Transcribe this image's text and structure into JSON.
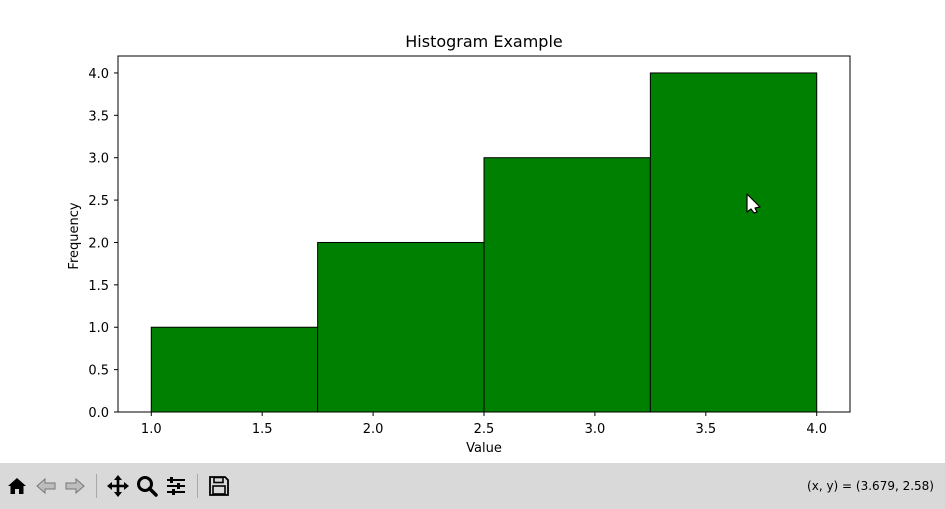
{
  "window": {
    "coord_readout": "(x, y) = (3.679, 2.58)"
  },
  "toolbar": {
    "buttons": [
      {
        "name": "home-button",
        "icon": "home-icon"
      },
      {
        "name": "back-button",
        "icon": "arrow-left-icon"
      },
      {
        "name": "forward-button",
        "icon": "arrow-right-icon"
      },
      {
        "name": "pan-button",
        "icon": "move-icon"
      },
      {
        "name": "zoom-button",
        "icon": "magnifier-icon"
      },
      {
        "name": "configure-subplots-button",
        "icon": "sliders-icon"
      },
      {
        "name": "save-button",
        "icon": "floppy-disk-icon"
      }
    ]
  },
  "chart_data": {
    "type": "bar",
    "title": "Histogram Example",
    "xlabel": "Value",
    "ylabel": "Frequency",
    "bins": [
      {
        "start": 1.0,
        "end": 1.75,
        "value": 1
      },
      {
        "start": 1.75,
        "end": 2.5,
        "value": 2
      },
      {
        "start": 2.5,
        "end": 3.25,
        "value": 3
      },
      {
        "start": 3.25,
        "end": 4.0,
        "value": 4
      }
    ],
    "xlim": [
      0.85,
      4.15
    ],
    "ylim": [
      0,
      4.2
    ],
    "xticks": [
      "1.0",
      "1.5",
      "2.0",
      "2.5",
      "3.0",
      "3.5",
      "4.0"
    ],
    "yticks": [
      "0.0",
      "0.5",
      "1.0",
      "1.5",
      "2.0",
      "2.5",
      "3.0",
      "3.5",
      "4.0"
    ],
    "bar_color": "#008000",
    "edge_color": "#000000",
    "grid": false,
    "legend": "none"
  }
}
